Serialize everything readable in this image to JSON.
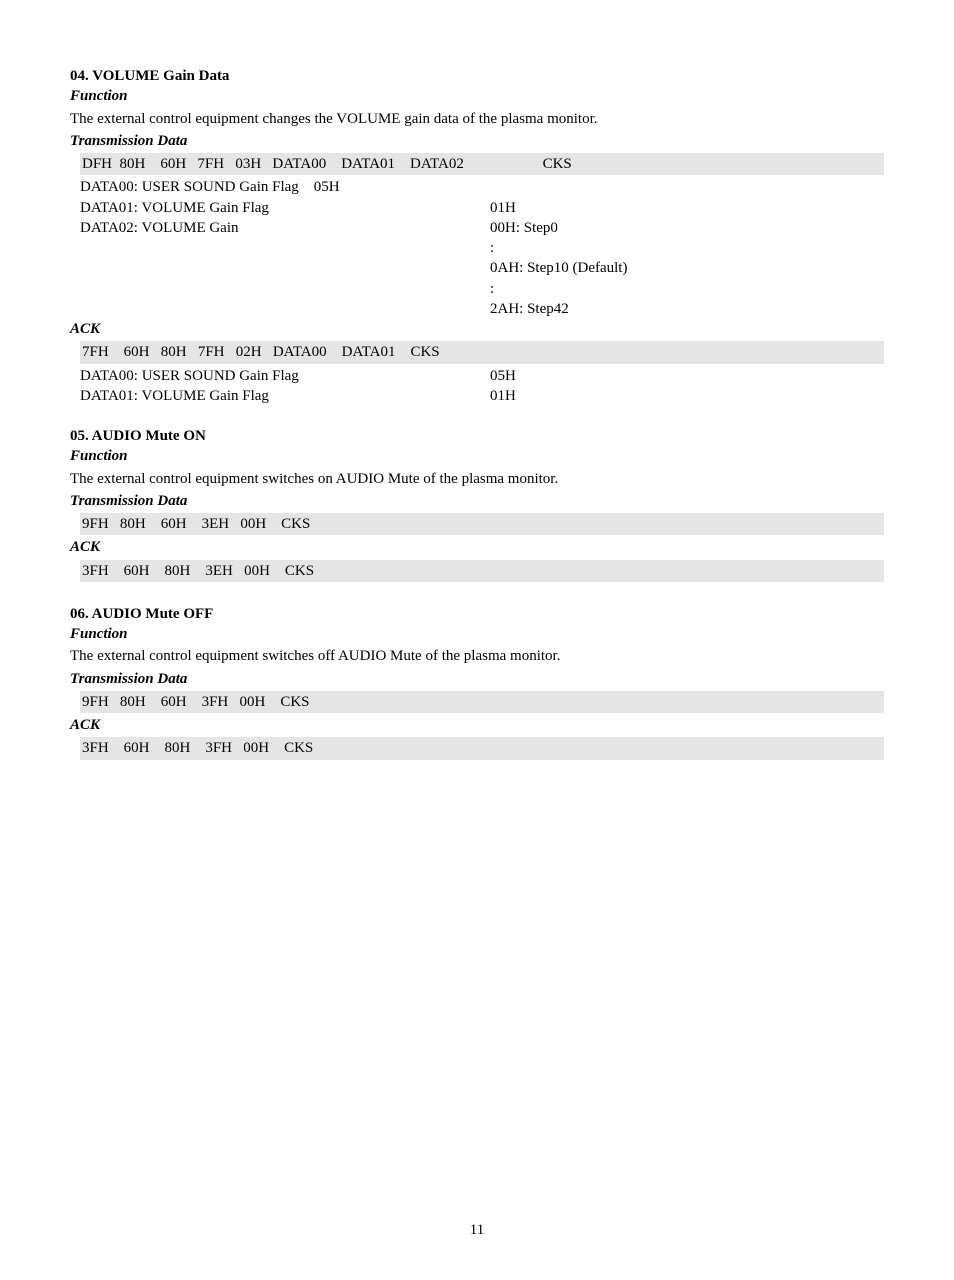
{
  "sections": {
    "s04": {
      "title": "04. VOLUME Gain Data",
      "func_label": "Function",
      "func_text": "The external control equipment changes the VOLUME gain data of the plasma monitor.",
      "trans_label": "Transmission Data",
      "trans_row": "DFH  80H    60H   7FH   03H   DATA00    DATA01    DATA02                     CKS",
      "d00": "DATA00: USER SOUND Gain Flag    05H",
      "d01_k": "DATA01: VOLUME Gain Flag",
      "d01_v": "01H",
      "d02_k": "DATA02: VOLUME Gain",
      "d02_v": "00H: Step0",
      "d02_colon1": ":",
      "d02_def": "0AH: Step10 (Default)",
      "d02_colon2": ":",
      "d02_end": "2AH: Step42",
      "ack_label": "ACK",
      "ack_row": "7FH    60H   80H   7FH   02H   DATA00    DATA01    CKS",
      "ack_d00_k": "DATA00: USER SOUND Gain Flag",
      "ack_d00_v": "05H",
      "ack_d01_k": "DATA01: VOLUME Gain Flag",
      "ack_d01_v": "01H"
    },
    "s05": {
      "title": "05. AUDIO Mute ON",
      "func_label": "Function",
      "func_text": "The external control equipment switches on AUDIO Mute of the plasma monitor.",
      "trans_label": "Transmission Data",
      "trans_row": "9FH   80H    60H    3EH   00H    CKS",
      "ack_label": "ACK",
      "ack_row": "3FH    60H    80H    3EH   00H    CKS"
    },
    "s06": {
      "title": "06. AUDIO Mute OFF",
      "func_label": "Function",
      "func_text": "The external control equipment switches off AUDIO Mute of the plasma monitor.",
      "trans_label": "Transmission Data",
      "trans_row": "9FH   80H    60H    3FH   00H    CKS",
      "ack_label": "ACK",
      "ack_row": "3FH    60H    80H    3FH   00H    CKS"
    }
  },
  "page_number": "11"
}
